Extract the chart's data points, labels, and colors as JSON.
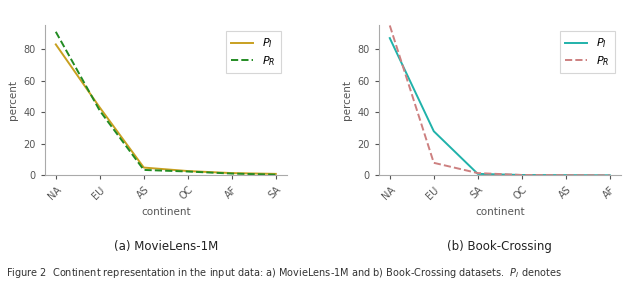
{
  "movielens": {
    "x_labels": [
      "NA",
      "EU",
      "AS",
      "OC",
      "AF",
      "SA"
    ],
    "P_I": [
      83,
      43,
      5,
      2.8,
      1.5,
      1.0
    ],
    "P_R": [
      91,
      41,
      3.5,
      2.5,
      1.2,
      0.5
    ],
    "color_PI": "#C8A020",
    "color_PR": "#228B22",
    "linestyle_PI": "-",
    "linestyle_PR": "--",
    "label_PI": "$P_I$",
    "label_PR": "$P_R$",
    "title": "(a) MovieLens-1M",
    "xlabel": "continent",
    "ylabel": "percent"
  },
  "bookcrossing": {
    "x_labels": [
      "NA",
      "EU",
      "SA",
      "OC",
      "AS",
      "AF"
    ],
    "P_I": [
      87,
      28,
      1.0,
      0.3,
      0.2,
      0.1
    ],
    "P_R": [
      95,
      8,
      1.5,
      0.3,
      0.2,
      0.1
    ],
    "color_PI": "#20B2AA",
    "color_PR": "#CD8080",
    "linestyle_PI": "-",
    "linestyle_PR": "--",
    "label_PI": "$P_I$",
    "label_PR": "$P_R$",
    "title": "(b) Book-Crossing",
    "xlabel": "continent",
    "ylabel": "percent"
  },
  "figure_caption": "Figure 2  Continent representation in the input data: a) MovieLens-1M and b) Book-Crossing datasets.  $P_I$ denotes",
  "bg_color": "#ffffff",
  "ylim_ml": [
    0,
    95
  ],
  "ylim_bc": [
    0,
    95
  ],
  "yticks_ml": [
    0,
    20,
    40,
    60,
    80
  ],
  "yticks_bc": [
    0,
    20,
    40,
    60,
    80
  ],
  "tick_fontsize": 7,
  "label_fontsize": 7.5,
  "subtitle_fontsize": 8.5,
  "caption_fontsize": 7,
  "legend_fontsize": 8,
  "linewidth": 1.4
}
